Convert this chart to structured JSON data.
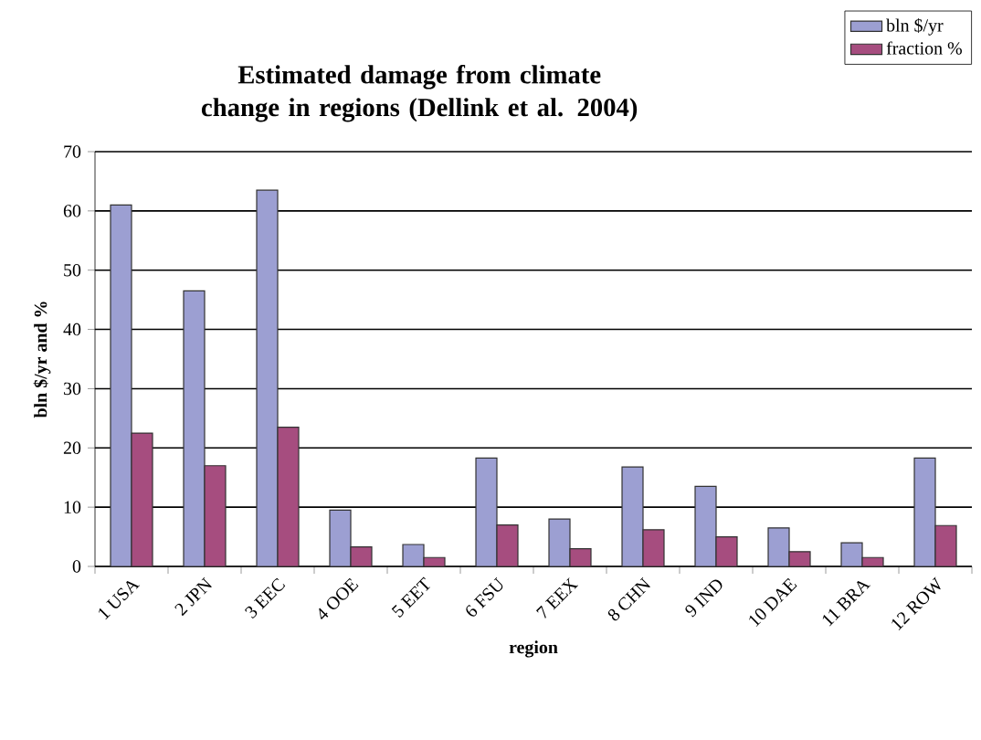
{
  "chart_data": {
    "type": "bar",
    "title": "Estimated damage from climate change in regions (Dellink et al. 2004)",
    "xlabel": "region",
    "ylabel": "bln $/yr and %",
    "categories": [
      "1 USA",
      "2 JPN",
      "3 EEC",
      "4 OOE",
      "5 EET",
      "6 FSU",
      "7 EEX",
      "8 CHN",
      "9 IND",
      "10 DAE",
      "11 BRA",
      "12 ROW"
    ],
    "series": [
      {
        "name": "bln $/yr",
        "color": "#9c9fd2",
        "values": [
          61,
          46.5,
          63.5,
          9.5,
          3.7,
          18.3,
          8,
          16.8,
          13.5,
          6.5,
          4,
          18.3
        ]
      },
      {
        "name": "fraction %",
        "color": "#a64d7f",
        "values": [
          22.5,
          17,
          23.5,
          3.3,
          1.5,
          7,
          3,
          6.2,
          5,
          2.5,
          1.5,
          6.9
        ]
      }
    ],
    "ylim": [
      0,
      70
    ],
    "yticks": [
      0,
      10,
      20,
      30,
      40,
      50,
      60,
      70
    ],
    "grid": "y",
    "legend": "top right"
  }
}
